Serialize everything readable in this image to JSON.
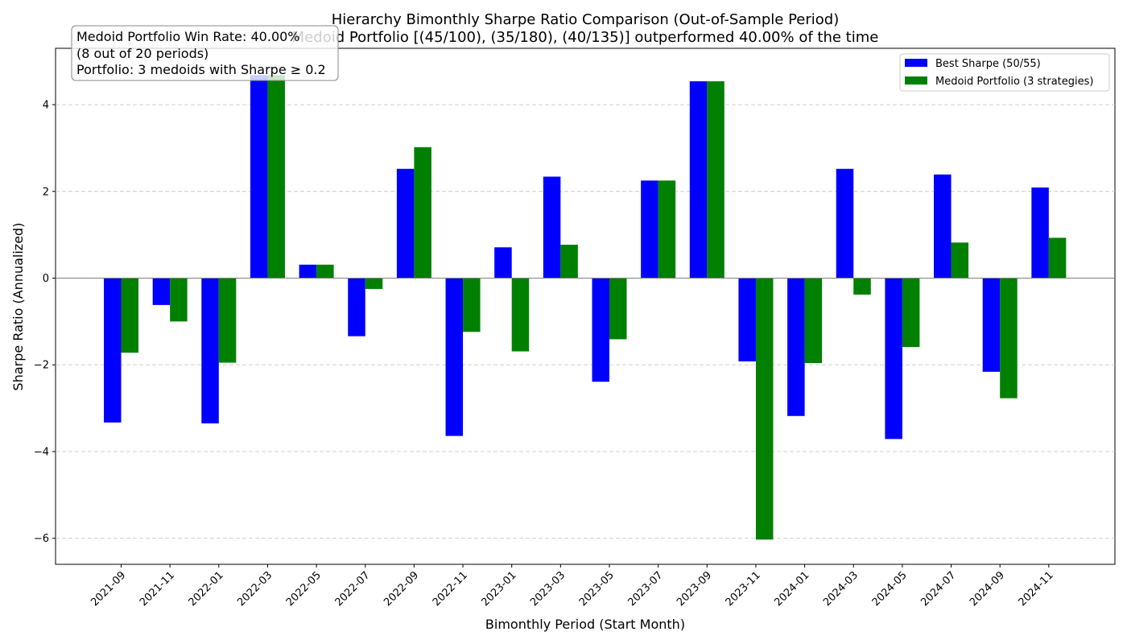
{
  "chart_data": {
    "type": "bar",
    "title": "Hierarchy Bimonthly Sharpe Ratio Comparison (Out-of-Sample Period)",
    "subtitle": "Medoid Portfolio [(45/100), (35/180), (40/135)] outperformed 40.00% of the time",
    "xlabel": "Bimonthly Period (Start Month)",
    "ylabel": "Sharpe Ratio (Annualized)",
    "ylim": [
      -6.6,
      5.3
    ],
    "yticks": [
      -6,
      -4,
      -2,
      0,
      2,
      4
    ],
    "ytick_labels": [
      "−6",
      "−4",
      "−2",
      "0",
      "2",
      "4"
    ],
    "grid": true,
    "legend_position": "upper right",
    "categories": [
      "2021-09",
      "2021-11",
      "2022-01",
      "2022-03",
      "2022-05",
      "2022-07",
      "2022-09",
      "2022-11",
      "2023-01",
      "2023-03",
      "2023-05",
      "2023-07",
      "2023-09",
      "2023-11",
      "2024-01",
      "2024-03",
      "2024-05",
      "2024-07",
      "2024-09",
      "2024-11"
    ],
    "series": [
      {
        "name": "Best Sharpe (50/55)",
        "color": "#0000ff",
        "values": [
          -3.33,
          -0.62,
          -3.35,
          4.68,
          0.31,
          -1.34,
          2.52,
          -3.64,
          0.71,
          2.34,
          -2.39,
          2.25,
          4.54,
          -1.92,
          -3.18,
          2.52,
          -3.71,
          2.39,
          -2.16,
          2.09
        ]
      },
      {
        "name": "Medoid Portfolio (3 strategies)",
        "color": "#008000",
        "values": [
          -1.72,
          -1.0,
          -1.95,
          4.68,
          0.31,
          -0.25,
          3.02,
          -1.24,
          -1.69,
          0.77,
          -1.41,
          2.25,
          4.54,
          -6.03,
          -1.96,
          -0.38,
          -1.59,
          0.82,
          -2.77,
          0.93
        ]
      }
    ],
    "annotation_lines": [
      "Medoid Portfolio Win Rate: 40.00%",
      "(8 out of 20 periods)",
      "Portfolio: 3 medoids with Sharpe ≥ 0.2"
    ]
  }
}
